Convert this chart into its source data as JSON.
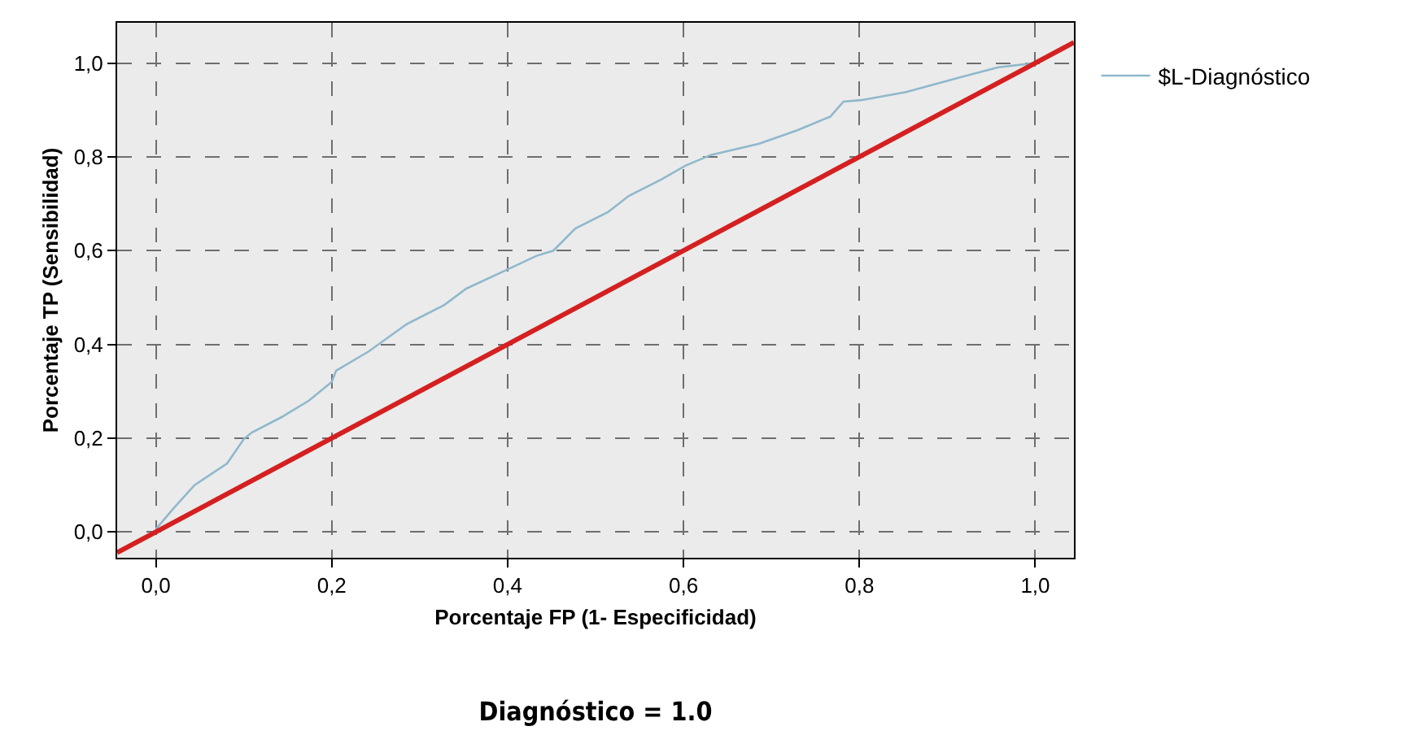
{
  "chart_data": {
    "type": "line",
    "title": "Diagnóstico = 1.0",
    "xlabel": "Porcentaje FP (1- Especificidad)",
    "ylabel": "Porcentaje TP (Sensibilidad)",
    "xlim": [
      -0.044,
      1.044
    ],
    "ylim": [
      -0.055,
      1.086
    ],
    "xticks": [
      {
        "value": 0,
        "label": "0,0"
      },
      {
        "value": 0.2,
        "label": "0,2"
      },
      {
        "value": 0.4,
        "label": "0,4"
      },
      {
        "value": 0.6,
        "label": "0,6"
      },
      {
        "value": 0.8,
        "label": "0,8"
      },
      {
        "value": 1,
        "label": "1,0"
      }
    ],
    "yticks": [
      {
        "value": 0,
        "label": "0,0"
      },
      {
        "value": 0.2,
        "label": "0,2"
      },
      {
        "value": 0.4,
        "label": "0,4"
      },
      {
        "value": 0.6,
        "label": "0,6"
      },
      {
        "value": 0.8,
        "label": "0,8"
      },
      {
        "value": 1,
        "label": "1,0"
      }
    ],
    "grid": true,
    "legend": "right",
    "marker": "none",
    "line_style": "solid",
    "series": [
      {
        "name": "$L-Diagnóstico",
        "color": "#8fb8cc",
        "x": [
          0,
          0.02,
          0.044,
          0.06,
          0.081,
          0.1,
          0.109,
          0.143,
          0.174,
          0.2,
          0.205,
          0.242,
          0.285,
          0.328,
          0.353,
          0.4,
          0.433,
          0.452,
          0.477,
          0.514,
          0.538,
          0.575,
          0.602,
          0.631,
          0.686,
          0.73,
          0.767,
          0.782,
          0.802,
          0.853,
          0.915,
          0.958,
          1.0
        ],
        "values": [
          0.006,
          0.05,
          0.1,
          0.12,
          0.146,
          0.198,
          0.212,
          0.245,
          0.28,
          0.32,
          0.344,
          0.385,
          0.443,
          0.484,
          0.519,
          0.56,
          0.589,
          0.6,
          0.647,
          0.682,
          0.717,
          0.752,
          0.781,
          0.804,
          0.828,
          0.857,
          0.886,
          0.918,
          0.921,
          0.938,
          0.97,
          0.991,
          1.0
        ]
      },
      {
        "color": "#d42020",
        "x": [
          -0.044,
          1.044
        ],
        "values": [
          -0.044,
          1.044
        ]
      }
    ]
  }
}
